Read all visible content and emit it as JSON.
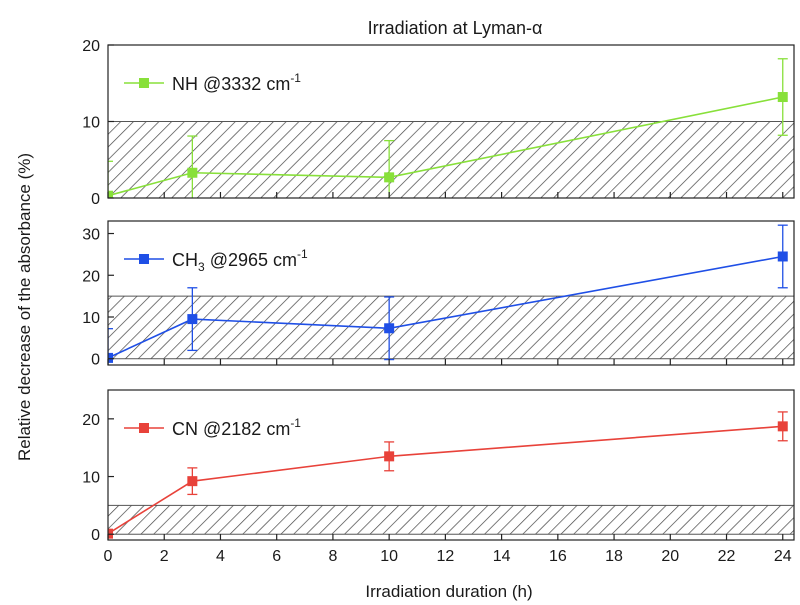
{
  "chart_data": {
    "type": "line",
    "title": "Irradiation at Lyman-α",
    "xlabel": "Irradiation duration (h)",
    "ylabel": "Relative decrease of the absorbance (%)",
    "xlim": [
      0,
      24.4
    ],
    "xticks": [
      "0",
      "2",
      "4",
      "6",
      "8",
      "10",
      "12",
      "14",
      "16",
      "18",
      "20",
      "22",
      "24"
    ],
    "x": [
      0,
      3,
      10,
      24
    ],
    "panels": [
      {
        "legend_main": "NH @3332 cm",
        "legend_sub": "",
        "legend_sup": "-1",
        "color": "#88e03a",
        "ylim": [
          0,
          20
        ],
        "yticks": [
          "0",
          "10",
          "20"
        ],
        "values": [
          0.3,
          3.3,
          2.7,
          13.2
        ],
        "errors": [
          4.5,
          4.8,
          4.8,
          5.0
        ],
        "noise_band": [
          0,
          10
        ]
      },
      {
        "legend_main": "CH",
        "legend_sub": "3",
        "legend_sup": "-1",
        "legend_after": " @2965 cm",
        "color": "#1f4fe6",
        "ylim": [
          -1.5,
          33
        ],
        "yticks": [
          "0",
          "10",
          "20",
          "30"
        ],
        "values": [
          0.2,
          9.5,
          7.3,
          24.5
        ],
        "errors": [
          7.0,
          7.5,
          7.5,
          7.5
        ],
        "noise_band": [
          0,
          15
        ]
      },
      {
        "legend_main": "CN @2182 cm",
        "legend_sub": "",
        "legend_sup": "-1",
        "color": "#e8423a",
        "ylim": [
          -1,
          25
        ],
        "yticks": [
          "0",
          "10",
          "20"
        ],
        "values": [
          0.1,
          9.2,
          13.5,
          18.7
        ],
        "errors": [
          0,
          2.3,
          2.5,
          2.5
        ],
        "noise_band": [
          0,
          5
        ]
      }
    ]
  }
}
